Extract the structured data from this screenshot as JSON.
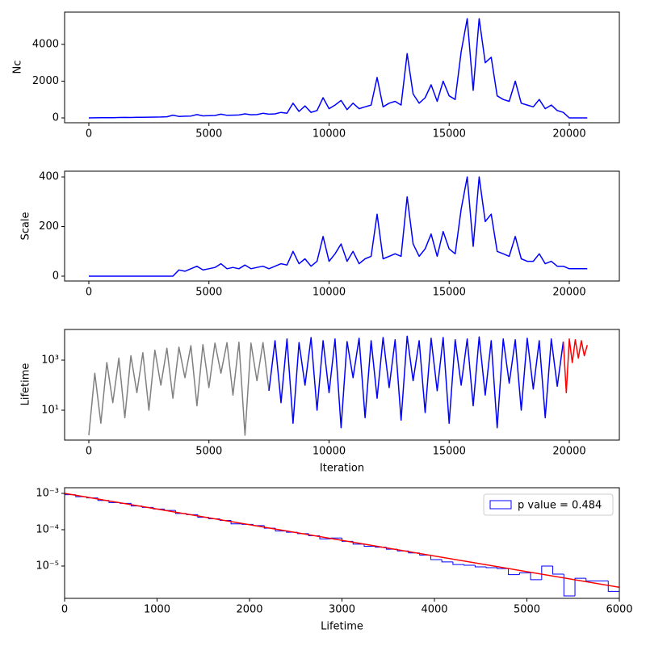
{
  "chart_data": [
    {
      "type": "line",
      "ylabel": "Nc",
      "xlim": [
        -1008,
        22084
      ],
      "xticks": [
        0,
        5000,
        10000,
        15000,
        20000
      ],
      "ylim": [
        -264,
        5758
      ],
      "yticks": [
        0,
        2000,
        4000
      ],
      "series": [
        {
          "color": "#0000ff",
          "x": [
            0,
            250,
            500,
            750,
            1000,
            1250,
            1500,
            1750,
            2000,
            2250,
            2500,
            2750,
            3000,
            3250,
            3500,
            3750,
            4000,
            4250,
            4500,
            4750,
            5000,
            5250,
            5500,
            5750,
            6000,
            6250,
            6500,
            6750,
            7000,
            7250,
            7500,
            7750,
            8000,
            8250,
            8500,
            8750,
            9000,
            9250,
            9500,
            9750,
            10000,
            10250,
            10500,
            10750,
            11000,
            11250,
            11500,
            11750,
            12000,
            12250,
            12500,
            12750,
            13000,
            13250,
            13500,
            13750,
            14000,
            14250,
            14500,
            14750,
            15000,
            15250,
            15500,
            15750,
            16000,
            16250,
            16500,
            16750,
            17000,
            17250,
            17500,
            17750,
            18000,
            18250,
            18500,
            18750,
            19000,
            19250,
            19500,
            19750,
            20000,
            20250,
            20500,
            20750
          ],
          "values": [
            0,
            5,
            10,
            15,
            10,
            20,
            25,
            20,
            30,
            35,
            40,
            45,
            50,
            60,
            150,
            80,
            90,
            100,
            180,
            110,
            120,
            130,
            200,
            140,
            150,
            160,
            220,
            170,
            180,
            250,
            200,
            220,
            300,
            250,
            800,
            350,
            650,
            300,
            400,
            1100,
            500,
            700,
            950,
            450,
            800,
            500,
            600,
            700,
            2200,
            600,
            800,
            900,
            700,
            3500,
            1300,
            800,
            1100,
            1800,
            900,
            2000,
            1200,
            1000,
            3600,
            5400,
            1500,
            5400,
            3000,
            3300,
            1200,
            1000,
            900,
            2000,
            800,
            700,
            600,
            1000,
            500,
            700,
            400,
            300,
            0,
            0,
            0,
            0
          ]
        }
      ]
    },
    {
      "type": "line",
      "ylabel": "Scale",
      "xlim": [
        -1008,
        22084
      ],
      "xticks": [
        0,
        5000,
        10000,
        15000,
        20000
      ],
      "ylim": [
        -19.5,
        423
      ],
      "yticks": [
        0,
        200,
        400
      ],
      "series": [
        {
          "color": "#0000ff",
          "x": [
            0,
            250,
            500,
            750,
            1000,
            1250,
            1500,
            1750,
            2000,
            2250,
            2500,
            2750,
            3000,
            3250,
            3500,
            3750,
            4000,
            4250,
            4500,
            4750,
            5000,
            5250,
            5500,
            5750,
            6000,
            6250,
            6500,
            6750,
            7000,
            7250,
            7500,
            7750,
            8000,
            8250,
            8500,
            8750,
            9000,
            9250,
            9500,
            9750,
            10000,
            10250,
            10500,
            10750,
            11000,
            11250,
            11500,
            11750,
            12000,
            12250,
            12500,
            12750,
            13000,
            13250,
            13500,
            13750,
            14000,
            14250,
            14500,
            14750,
            15000,
            15250,
            15500,
            15750,
            16000,
            16250,
            16500,
            16750,
            17000,
            17250,
            17500,
            17750,
            18000,
            18250,
            18500,
            18750,
            19000,
            19250,
            19500,
            19750,
            20000,
            20250,
            20500,
            20750
          ],
          "values": [
            0,
            0,
            0,
            0,
            0,
            0,
            0,
            0,
            0,
            0,
            0,
            0,
            0,
            0,
            0,
            25,
            20,
            30,
            40,
            25,
            30,
            35,
            50,
            30,
            35,
            30,
            45,
            30,
            35,
            40,
            30,
            40,
            50,
            45,
            100,
            50,
            70,
            40,
            60,
            160,
            60,
            90,
            130,
            60,
            100,
            50,
            70,
            80,
            250,
            70,
            80,
            90,
            80,
            320,
            130,
            80,
            110,
            170,
            80,
            180,
            110,
            90,
            270,
            400,
            120,
            400,
            220,
            250,
            100,
            90,
            80,
            160,
            70,
            60,
            60,
            90,
            50,
            60,
            40,
            40,
            30,
            30,
            30,
            30
          ]
        }
      ]
    },
    {
      "type": "line",
      "ylabel": "Lifetime",
      "xlabel": "Iteration",
      "log_y": true,
      "xlim": [
        -1008,
        22084
      ],
      "xticks": [
        0,
        5000,
        10000,
        15000,
        20000
      ],
      "ylim": [
        0.64,
        16800
      ],
      "yticks": [
        {
          "value": 10,
          "label": "10¹"
        },
        {
          "value": 1000,
          "label": "10³"
        }
      ],
      "series": [
        {
          "color": "#808080",
          "x": [
            0,
            250,
            500,
            750,
            1000,
            1250,
            1500,
            1750,
            2000,
            2250,
            2500,
            2750,
            3000,
            3250,
            3500,
            3750,
            4000,
            4250,
            4500,
            4750,
            5000,
            5250,
            5500,
            5750,
            6000,
            6250,
            6500,
            6750,
            7000,
            7250,
            7500
          ],
          "values": [
            1,
            300,
            3,
            800,
            20,
            1200,
            5,
            1500,
            50,
            2000,
            10,
            2500,
            100,
            3000,
            30,
            3300,
            200,
            3800,
            15,
            4200,
            80,
            4800,
            300,
            5000,
            40,
            5200,
            1,
            4800,
            150,
            5000,
            60
          ]
        },
        {
          "color": "#0000ff",
          "x": [
            7500,
            7750,
            8000,
            8250,
            8500,
            8750,
            9000,
            9250,
            9500,
            9750,
            10000,
            10250,
            10500,
            10750,
            11000,
            11250,
            11500,
            11750,
            12000,
            12250,
            12500,
            12750,
            13000,
            13250,
            13500,
            13750,
            14000,
            14250,
            14500,
            14750,
            15000,
            15250,
            15500,
            15750,
            16000,
            16250,
            16500,
            16750,
            17000,
            17250,
            17500,
            17750,
            18000,
            18250,
            18500,
            18750,
            19000,
            19250,
            19500,
            19750
          ],
          "values": [
            60,
            6000,
            20,
            7000,
            3,
            5000,
            100,
            8000,
            10,
            6000,
            50,
            7000,
            2,
            5500,
            200,
            7500,
            5,
            6000,
            30,
            8000,
            80,
            6500,
            4,
            9000,
            150,
            6000,
            8,
            7500,
            60,
            8000,
            3,
            6500,
            100,
            7000,
            15,
            8500,
            40,
            6000,
            2,
            7000,
            120,
            6500,
            10,
            7500,
            70,
            6000,
            5,
            7000,
            90,
            5500
          ]
        },
        {
          "color": "#ff0000",
          "x": [
            19750,
            19875,
            20000,
            20125,
            20250,
            20375,
            20500,
            20625,
            20750
          ],
          "values": [
            5500,
            50,
            7000,
            800,
            6500,
            1200,
            6000,
            1500,
            4000
          ]
        }
      ]
    },
    {
      "type": "histogram",
      "xlabel": "Lifetime",
      "log_y": true,
      "legend": "upper right",
      "xlim": [
        0,
        6000
      ],
      "xticks": [
        0,
        1000,
        2000,
        3000,
        4000,
        5000,
        6000
      ],
      "ylim": [
        1.29e-06,
        0.00143
      ],
      "yticks": [
        {
          "value": 1e-05,
          "label": "10⁻⁵"
        },
        {
          "value": 0.0001,
          "label": "10⁻⁴"
        },
        {
          "value": 0.001,
          "label": "10⁻³"
        }
      ],
      "name": "p value = 0.484",
      "color": "#0000ff",
      "bins": [
        0,
        120,
        240,
        360,
        480,
        600,
        720,
        840,
        960,
        1080,
        1200,
        1320,
        1440,
        1560,
        1680,
        1800,
        1920,
        2040,
        2160,
        2280,
        2400,
        2520,
        2640,
        2760,
        2880,
        3000,
        3120,
        3240,
        3360,
        3480,
        3600,
        3720,
        3840,
        3960,
        4080,
        4200,
        4320,
        4440,
        4560,
        4680,
        4800,
        4920,
        5040,
        5160,
        5280,
        5400,
        5520,
        5640,
        5760,
        5880,
        6000
      ],
      "values": [
        0.00092,
        0.00081,
        0.00075,
        0.00064,
        0.00056,
        0.00053,
        0.00045,
        0.00041,
        0.00037,
        0.00034,
        0.00028,
        0.00026,
        0.00022,
        0.0002,
        0.00018,
        0.000145,
        0.00014,
        0.00013,
        0.00011,
        9.2e-05,
        8.5e-05,
        7.8e-05,
        6.8e-05,
        5.6e-05,
        5.9e-05,
        4.8e-05,
        4e-05,
        3.5e-05,
        3.3e-05,
        2.9e-05,
        2.6e-05,
        2.3e-05,
        2e-05,
        1.5e-05,
        1.3e-05,
        1.1e-05,
        1.05e-05,
        9.5e-06,
        9e-06,
        8.5e-06,
        5.8e-06,
        6.5e-06,
        4.2e-06,
        1e-05,
        6e-06,
        1.5e-06,
        4.6e-06,
        3.9e-06,
        3.9e-06,
        2e-06
      ],
      "fit": {
        "color": "#ff0000",
        "x": [
          0,
          6000
        ],
        "values": [
          0.001,
          2.6e-06
        ]
      }
    }
  ]
}
